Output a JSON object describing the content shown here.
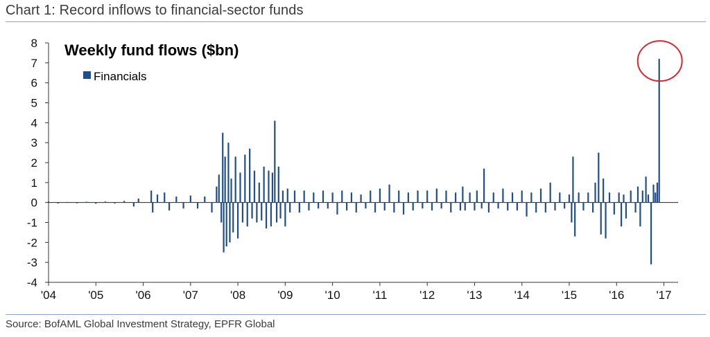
{
  "header": {
    "title": "Chart 1: Record inflows to financial-sector funds"
  },
  "footer": {
    "source": "Source: BofAML Global Investment Strategy, EPFR Global"
  },
  "colors": {
    "series": "#1f4e8c",
    "highlight": "#d9262c",
    "rule": "#8aa2c8"
  },
  "chart_data": {
    "type": "bar",
    "title": "Weekly fund flows ($bn)",
    "xlabel": "",
    "ylabel": "",
    "ylim": [
      -4,
      8
    ],
    "yticks": [
      "-4",
      "-3",
      "-2",
      "-1",
      "0",
      "1",
      "2",
      "3",
      "4",
      "5",
      "6",
      "7",
      "8"
    ],
    "xticks": [
      "'04",
      "'05",
      "'06",
      "'07",
      "'08",
      "'09",
      "'10",
      "'11",
      "'12",
      "'13",
      "'14",
      "'15",
      "'16",
      "'17"
    ],
    "x_range": [
      2004,
      2017.3
    ],
    "legend": {
      "position": "top-left",
      "entries": [
        "Financials"
      ]
    },
    "series": [
      {
        "name": "Financials",
        "points": [
          {
            "x": 2004.0,
            "y": 0.05
          },
          {
            "x": 2004.2,
            "y": -0.05
          },
          {
            "x": 2004.4,
            "y": 0.03
          },
          {
            "x": 2004.6,
            "y": -0.04
          },
          {
            "x": 2004.8,
            "y": 0.04
          },
          {
            "x": 2005.0,
            "y": -0.06
          },
          {
            "x": 2005.2,
            "y": 0.05
          },
          {
            "x": 2005.4,
            "y": -0.05
          },
          {
            "x": 2005.6,
            "y": 0.08
          },
          {
            "x": 2005.8,
            "y": -0.2
          },
          {
            "x": 2005.9,
            "y": 0.2
          },
          {
            "x": 2006.17,
            "y": 0.6
          },
          {
            "x": 2006.2,
            "y": -0.5
          },
          {
            "x": 2006.3,
            "y": 0.4
          },
          {
            "x": 2006.45,
            "y": 0.5
          },
          {
            "x": 2006.55,
            "y": -0.4
          },
          {
            "x": 2006.7,
            "y": 0.3
          },
          {
            "x": 2006.85,
            "y": -0.3
          },
          {
            "x": 2007.0,
            "y": 0.35
          },
          {
            "x": 2007.15,
            "y": -0.3
          },
          {
            "x": 2007.3,
            "y": 0.3
          },
          {
            "x": 2007.45,
            "y": -0.5
          },
          {
            "x": 2007.55,
            "y": 0.8
          },
          {
            "x": 2007.6,
            "y": 1.4
          },
          {
            "x": 2007.65,
            "y": -1.0
          },
          {
            "x": 2007.68,
            "y": 3.5
          },
          {
            "x": 2007.7,
            "y": -2.5
          },
          {
            "x": 2007.73,
            "y": 2.3
          },
          {
            "x": 2007.76,
            "y": -2.2
          },
          {
            "x": 2007.8,
            "y": 3.0
          },
          {
            "x": 2007.83,
            "y": -2.0
          },
          {
            "x": 2007.86,
            "y": 1.2
          },
          {
            "x": 2007.9,
            "y": -1.5
          },
          {
            "x": 2007.95,
            "y": 2.3
          },
          {
            "x": 2008.0,
            "y": -1.8
          },
          {
            "x": 2008.05,
            "y": 1.5
          },
          {
            "x": 2008.1,
            "y": -1.0
          },
          {
            "x": 2008.15,
            "y": 2.4
          },
          {
            "x": 2008.2,
            "y": -1.2
          },
          {
            "x": 2008.25,
            "y": 2.7
          },
          {
            "x": 2008.3,
            "y": -0.8
          },
          {
            "x": 2008.35,
            "y": 1.6
          },
          {
            "x": 2008.4,
            "y": -1.0
          },
          {
            "x": 2008.45,
            "y": 1.0
          },
          {
            "x": 2008.5,
            "y": -0.9
          },
          {
            "x": 2008.55,
            "y": 1.8
          },
          {
            "x": 2008.6,
            "y": -1.3
          },
          {
            "x": 2008.65,
            "y": 1.6
          },
          {
            "x": 2008.7,
            "y": -1.2
          },
          {
            "x": 2008.73,
            "y": 1.5
          },
          {
            "x": 2008.78,
            "y": 4.1
          },
          {
            "x": 2008.82,
            "y": -1.0
          },
          {
            "x": 2008.86,
            "y": 1.8
          },
          {
            "x": 2008.9,
            "y": -0.8
          },
          {
            "x": 2008.95,
            "y": 0.6
          },
          {
            "x": 2009.0,
            "y": -1.2
          },
          {
            "x": 2009.05,
            "y": 0.7
          },
          {
            "x": 2009.1,
            "y": -0.5
          },
          {
            "x": 2009.2,
            "y": 0.6
          },
          {
            "x": 2009.3,
            "y": -0.5
          },
          {
            "x": 2009.4,
            "y": 0.6
          },
          {
            "x": 2009.5,
            "y": -0.4
          },
          {
            "x": 2009.6,
            "y": 0.5
          },
          {
            "x": 2009.7,
            "y": -0.3
          },
          {
            "x": 2009.8,
            "y": 0.6
          },
          {
            "x": 2009.9,
            "y": -0.3
          },
          {
            "x": 2010.0,
            "y": 0.5
          },
          {
            "x": 2010.1,
            "y": -0.6
          },
          {
            "x": 2010.2,
            "y": 0.6
          },
          {
            "x": 2010.3,
            "y": -0.4
          },
          {
            "x": 2010.4,
            "y": 0.5
          },
          {
            "x": 2010.5,
            "y": -0.5
          },
          {
            "x": 2010.6,
            "y": 0.4
          },
          {
            "x": 2010.7,
            "y": -0.3
          },
          {
            "x": 2010.8,
            "y": 0.6
          },
          {
            "x": 2010.9,
            "y": -0.5
          },
          {
            "x": 2011.0,
            "y": 0.7
          },
          {
            "x": 2011.1,
            "y": -0.4
          },
          {
            "x": 2011.2,
            "y": 0.9
          },
          {
            "x": 2011.3,
            "y": -0.5
          },
          {
            "x": 2011.4,
            "y": 0.6
          },
          {
            "x": 2011.5,
            "y": -0.6
          },
          {
            "x": 2011.6,
            "y": 0.5
          },
          {
            "x": 2011.7,
            "y": -0.4
          },
          {
            "x": 2011.8,
            "y": 0.6
          },
          {
            "x": 2011.9,
            "y": -0.3
          },
          {
            "x": 2012.0,
            "y": 0.6
          },
          {
            "x": 2012.1,
            "y": -0.4
          },
          {
            "x": 2012.2,
            "y": 0.7
          },
          {
            "x": 2012.3,
            "y": -0.3
          },
          {
            "x": 2012.4,
            "y": 0.6
          },
          {
            "x": 2012.5,
            "y": -0.5
          },
          {
            "x": 2012.6,
            "y": 0.5
          },
          {
            "x": 2012.7,
            "y": -0.4
          },
          {
            "x": 2012.75,
            "y": 0.8
          },
          {
            "x": 2012.8,
            "y": -0.4
          },
          {
            "x": 2012.9,
            "y": 0.5
          },
          {
            "x": 2013.0,
            "y": -0.4
          },
          {
            "x": 2013.05,
            "y": 0.6
          },
          {
            "x": 2013.15,
            "y": -0.3
          },
          {
            "x": 2013.2,
            "y": 1.7
          },
          {
            "x": 2013.3,
            "y": -0.5
          },
          {
            "x": 2013.4,
            "y": 0.5
          },
          {
            "x": 2013.5,
            "y": -0.3
          },
          {
            "x": 2013.6,
            "y": 0.7
          },
          {
            "x": 2013.7,
            "y": -0.4
          },
          {
            "x": 2013.8,
            "y": 0.5
          },
          {
            "x": 2013.9,
            "y": -0.4
          },
          {
            "x": 2014.0,
            "y": 0.6
          },
          {
            "x": 2014.1,
            "y": -0.7
          },
          {
            "x": 2014.2,
            "y": 0.5
          },
          {
            "x": 2014.3,
            "y": -0.5
          },
          {
            "x": 2014.4,
            "y": 0.7
          },
          {
            "x": 2014.5,
            "y": -0.5
          },
          {
            "x": 2014.6,
            "y": 1.0
          },
          {
            "x": 2014.7,
            "y": -0.4
          },
          {
            "x": 2014.8,
            "y": 0.5
          },
          {
            "x": 2014.9,
            "y": -0.3
          },
          {
            "x": 2015.0,
            "y": 0.4
          },
          {
            "x": 2015.05,
            "y": -1.0
          },
          {
            "x": 2015.08,
            "y": 2.3
          },
          {
            "x": 2015.12,
            "y": -1.7
          },
          {
            "x": 2015.2,
            "y": 0.5
          },
          {
            "x": 2015.3,
            "y": -0.4
          },
          {
            "x": 2015.4,
            "y": 0.5
          },
          {
            "x": 2015.5,
            "y": -0.5
          },
          {
            "x": 2015.55,
            "y": 1.0
          },
          {
            "x": 2015.62,
            "y": 2.5
          },
          {
            "x": 2015.67,
            "y": -1.6
          },
          {
            "x": 2015.72,
            "y": 1.2
          },
          {
            "x": 2015.77,
            "y": -1.8
          },
          {
            "x": 2015.85,
            "y": 0.5
          },
          {
            "x": 2015.95,
            "y": -0.6
          },
          {
            "x": 2016.05,
            "y": 0.5
          },
          {
            "x": 2016.1,
            "y": -1.2
          },
          {
            "x": 2016.15,
            "y": 0.4
          },
          {
            "x": 2016.2,
            "y": -0.8
          },
          {
            "x": 2016.3,
            "y": 0.6
          },
          {
            "x": 2016.4,
            "y": -0.5
          },
          {
            "x": 2016.45,
            "y": 0.8
          },
          {
            "x": 2016.5,
            "y": -1.2
          },
          {
            "x": 2016.55,
            "y": 0.6
          },
          {
            "x": 2016.62,
            "y": 1.3
          },
          {
            "x": 2016.67,
            "y": 0.4
          },
          {
            "x": 2016.73,
            "y": -3.1
          },
          {
            "x": 2016.78,
            "y": 0.9
          },
          {
            "x": 2016.82,
            "y": 0.5
          },
          {
            "x": 2016.86,
            "y": 1.0
          },
          {
            "x": 2016.9,
            "y": 7.2
          }
        ]
      }
    ],
    "annotations": [
      {
        "type": "circle",
        "target_x": 2016.9,
        "target_y": 7.2,
        "color": "#d9262c"
      }
    ]
  }
}
